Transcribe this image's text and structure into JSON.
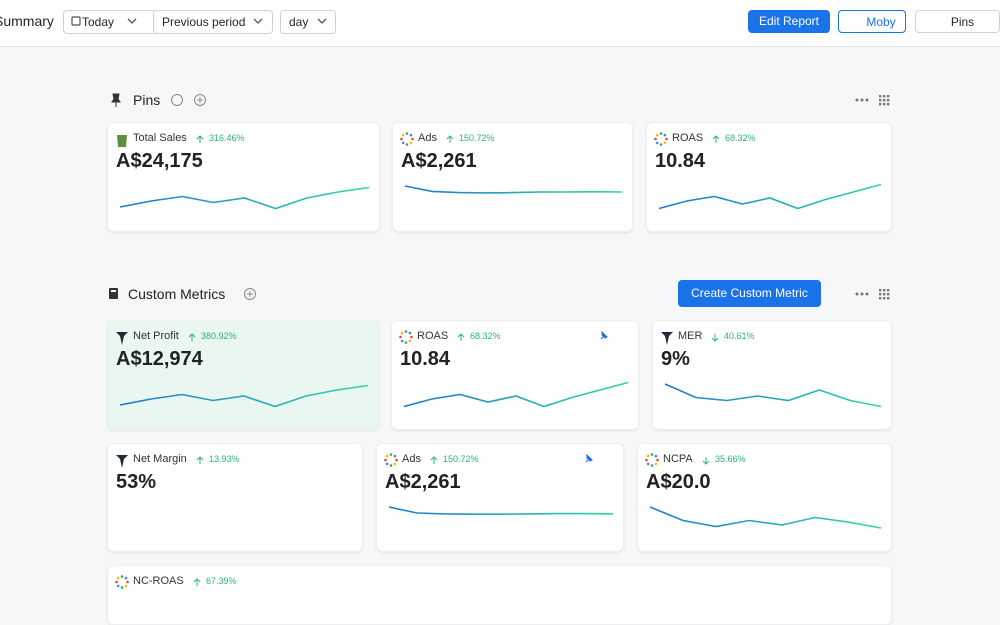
{
  "header": {
    "title": "Summary",
    "filters": [
      "Today",
      "Previous period",
      "day"
    ],
    "buttons": [
      "Edit Report",
      "Moby",
      "Pins"
    ]
  },
  "pins": {
    "title": "Pins",
    "cards": [
      {
        "name": "Total Sales",
        "change": "316.46%",
        "value": "A$24,175"
      },
      {
        "name": "Ads",
        "change": "150.72%",
        "value": "A$2,261"
      },
      {
        "name": "ROAS",
        "change": "68.32%",
        "value": "10.84"
      }
    ]
  },
  "custom_metrics": {
    "title": "Custom Metrics",
    "button": "Create Custom Metric",
    "cards": [
      {
        "name": "Net Profit",
        "change": "380.92%",
        "value": "A$12,974"
      },
      {
        "name": "ROAS",
        "change": "68.32%",
        "value": "10.84"
      },
      {
        "name": "MER",
        "change": "40.61%",
        "value": "9%"
      },
      {
        "name": "Net Margin",
        "change": "13.93%",
        "value": "53%"
      },
      {
        "name": "Ads",
        "change": "150.72%",
        "value": "A$2,261"
      },
      {
        "name": "NCPA",
        "change": "35.66%",
        "value": "A$20.0"
      },
      {
        "name": "NC-ROAS",
        "change": "67.39%"
      }
    ]
  }
}
